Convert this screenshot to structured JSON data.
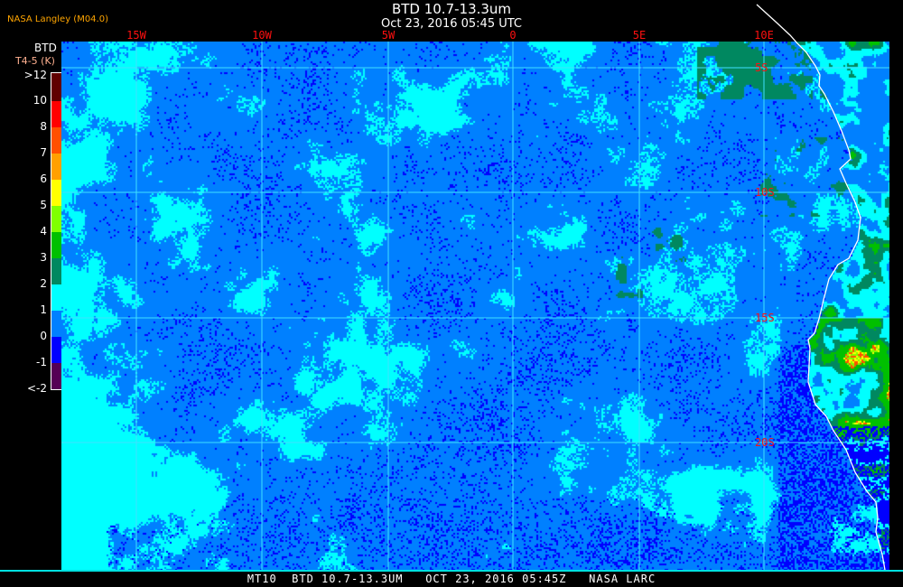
{
  "header": {
    "title": "BTD 10.7-13.3um",
    "subtitle": "Oct 23, 2016 05:45 UTC",
    "credit": "NASA Langley (M04.0)"
  },
  "colorbar": {
    "title": "BTD",
    "units": "T4-5 (K)",
    "labels": [
      ">12",
      "10",
      "8",
      "7",
      "6",
      "5",
      "4",
      "3",
      "2",
      "1",
      "0",
      "-1",
      "<-2"
    ],
    "colors": [
      "#600000",
      "#ff0000",
      "#ff5000",
      "#ffa000",
      "#ffff00",
      "#80ff00",
      "#00c000",
      "#008860",
      "#00ffff",
      "#0080ff",
      "#0000ff",
      "#550055"
    ]
  },
  "map": {
    "longitude_labels": [
      "15W",
      "10W",
      "5W",
      "0",
      "5E",
      "10E"
    ],
    "latitude_labels": [
      "5S",
      "10S",
      "15S",
      "20S"
    ],
    "gridline_color": "#40e0ff",
    "label_color": "#ff1010",
    "coastline_color": "#ffffff"
  },
  "footer": {
    "text": "MT10  BTD 10.7-13.3UM   OCT 23, 2016 05:45Z   NASA LARC"
  }
}
